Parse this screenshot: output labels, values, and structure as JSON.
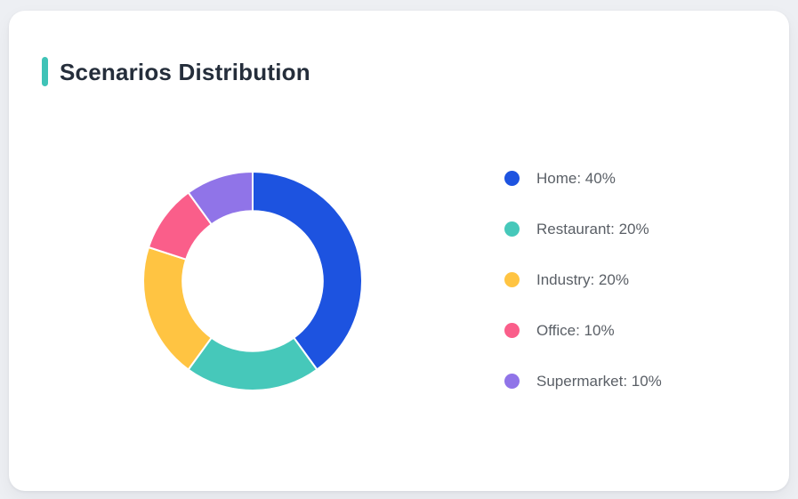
{
  "page": {
    "background_color": "#EDEFF3"
  },
  "card": {
    "title": "Scenarios Distribution",
    "accent_color": "#3FC3B7",
    "background_color": "#FFFFFF",
    "title_color": "#252E3B"
  },
  "chart_data": {
    "type": "pie",
    "subtype": "donut",
    "title": "Scenarios Distribution",
    "labels": [
      "Home",
      "Restaurant",
      "Industry",
      "Office",
      "Supermarket"
    ],
    "values": [
      40,
      20,
      20,
      10,
      10
    ],
    "unit": "%",
    "colors": [
      "#1D53E0",
      "#46C8BA",
      "#FFC442",
      "#FA5E8A",
      "#9074E8"
    ],
    "start_angle_deg": 90,
    "direction": "clockwise",
    "inner_radius_ratio": 0.64,
    "separator_color": "#FFFFFF",
    "legend_position": "right",
    "legend": [
      {
        "text": "Home: 40%"
      },
      {
        "text": "Restaurant: 20%"
      },
      {
        "text": "Industry: 20%"
      },
      {
        "text": "Office: 10%"
      },
      {
        "text": "Supermarket: 10%"
      }
    ]
  }
}
